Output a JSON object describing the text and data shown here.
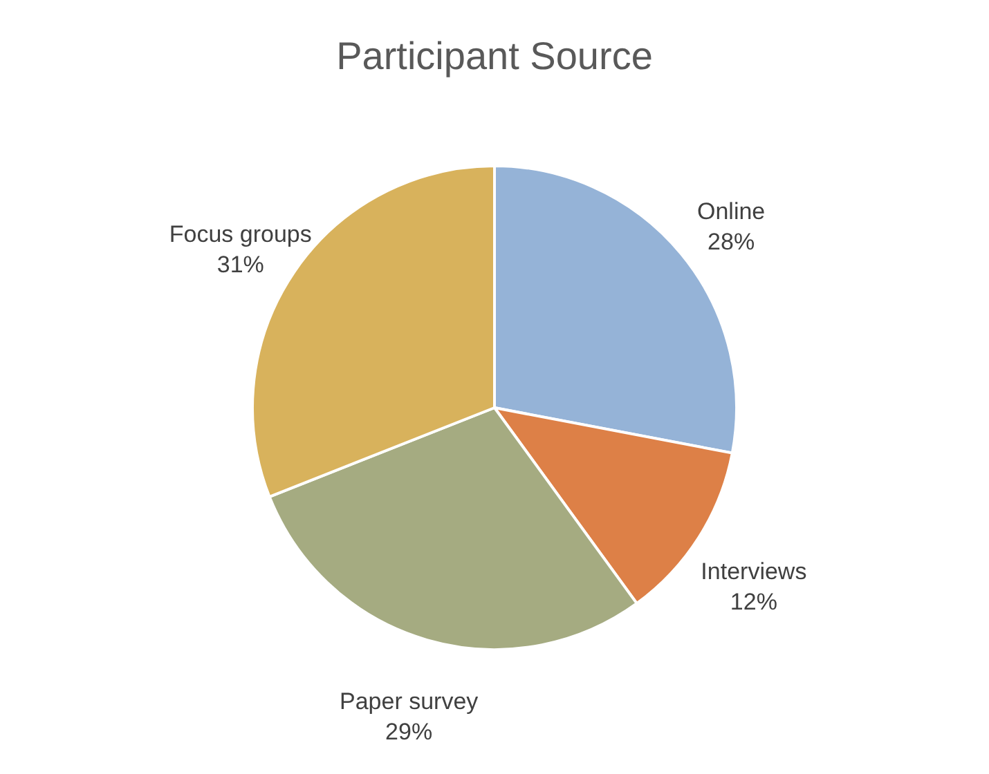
{
  "chart_data": {
    "type": "pie",
    "title": "Participant Source",
    "categories": [
      "Online",
      "Interviews",
      "Paper survey",
      "Focus groups"
    ],
    "values": [
      28,
      12,
      29,
      31
    ],
    "colors": [
      "#95b3d7",
      "#dd8047",
      "#a5ab81",
      "#d8b25c"
    ],
    "value_labels": [
      "28%",
      "12%",
      "29%",
      "31%"
    ],
    "legend": false
  }
}
